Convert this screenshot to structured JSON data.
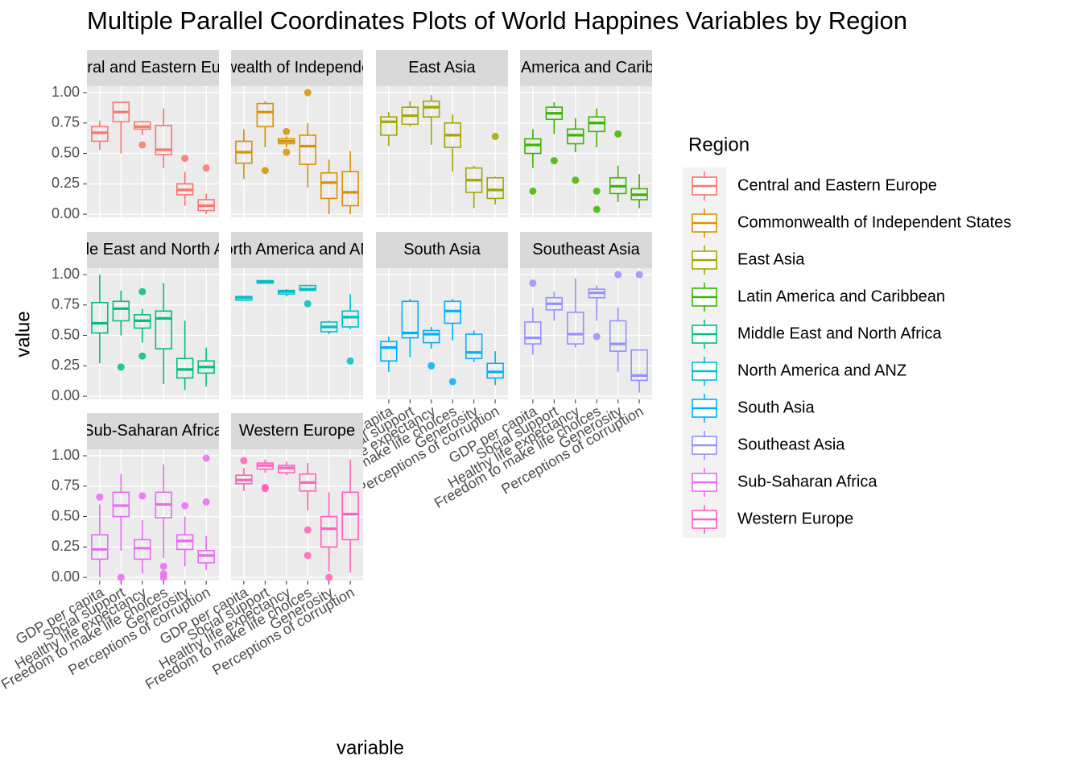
{
  "chart_data": {
    "type": "box",
    "title": "Multiple Parallel Coordinates Plots of World Happines Variables by Region",
    "x_label": "variable",
    "y_label": "value",
    "legend_title": "Region",
    "categories": [
      "GDP per capita",
      "Social support",
      "Healthy life expectancy",
      "Freedom to make life choices",
      "Generosity",
      "Perceptions of corruption"
    ],
    "ylim": [
      -0.026,
      1.053
    ],
    "yticks": [
      {
        "value": 0,
        "label": "0.00"
      },
      {
        "value": 0.25,
        "label": "0.25"
      },
      {
        "value": 0.5,
        "label": "0.50"
      },
      {
        "value": 0.75,
        "label": "0.75"
      },
      {
        "value": 1,
        "label": "1.00"
      }
    ],
    "grid": true,
    "panels": [
      {
        "name": "Central and Eastern Europe",
        "color": "#F8766D",
        "boxes": [
          {
            "low": 0.53,
            "q1": 0.6,
            "median": 0.67,
            "q3": 0.72,
            "high": 0.77,
            "outliers": []
          },
          {
            "low": 0.5,
            "q1": 0.76,
            "median": 0.84,
            "q3": 0.92,
            "high": 0.92,
            "outliers": []
          },
          {
            "low": 0.65,
            "q1": 0.7,
            "median": 0.72,
            "q3": 0.76,
            "high": 0.77,
            "outliers": [
              0.57
            ]
          },
          {
            "low": 0.38,
            "q1": 0.49,
            "median": 0.53,
            "q3": 0.73,
            "high": 0.87,
            "outliers": []
          },
          {
            "low": 0.07,
            "q1": 0.16,
            "median": 0.2,
            "q3": 0.25,
            "high": 0.35,
            "outliers": [
              0.46
            ]
          },
          {
            "low": 0,
            "q1": 0.03,
            "median": 0.07,
            "q3": 0.12,
            "high": 0.17,
            "outliers": [
              0.38
            ]
          }
        ]
      },
      {
        "name": "Commonwealth of Independent States",
        "color": "#D89000",
        "boxes": [
          {
            "low": 0.29,
            "q1": 0.42,
            "median": 0.51,
            "q3": 0.6,
            "high": 0.7,
            "outliers": []
          },
          {
            "low": 0.55,
            "q1": 0.72,
            "median": 0.84,
            "q3": 0.91,
            "high": 0.93,
            "outliers": [
              0.36
            ]
          },
          {
            "low": 0.55,
            "q1": 0.58,
            "median": 0.6,
            "q3": 0.62,
            "high": 0.64,
            "outliers": [
              0.68,
              0.51
            ]
          },
          {
            "low": 0.22,
            "q1": 0.41,
            "median": 0.56,
            "q3": 0.65,
            "high": 0.75,
            "outliers": [
              1
            ]
          },
          {
            "low": 0,
            "q1": 0.13,
            "median": 0.26,
            "q3": 0.34,
            "high": 0.45,
            "outliers": []
          },
          {
            "low": 0,
            "q1": 0.07,
            "median": 0.18,
            "q3": 0.35,
            "high": 0.52,
            "outliers": []
          }
        ]
      },
      {
        "name": "East Asia",
        "color": "#A3A500",
        "boxes": [
          {
            "low": 0.56,
            "q1": 0.65,
            "median": 0.76,
            "q3": 0.8,
            "high": 0.84,
            "outliers": []
          },
          {
            "low": 0.72,
            "q1": 0.74,
            "median": 0.81,
            "q3": 0.88,
            "high": 0.93,
            "outliers": []
          },
          {
            "low": 0.57,
            "q1": 0.8,
            "median": 0.88,
            "q3": 0.93,
            "high": 0.98,
            "outliers": []
          },
          {
            "low": 0.35,
            "q1": 0.55,
            "median": 0.65,
            "q3": 0.75,
            "high": 0.82,
            "outliers": []
          },
          {
            "low": 0.05,
            "q1": 0.18,
            "median": 0.28,
            "q3": 0.38,
            "high": 0.4,
            "outliers": []
          },
          {
            "low": 0.08,
            "q1": 0.13,
            "median": 0.2,
            "q3": 0.3,
            "high": 0.31,
            "outliers": [
              0.64
            ]
          }
        ]
      },
      {
        "name": "Latin America and Caribbean",
        "color": "#39B600",
        "boxes": [
          {
            "low": 0.38,
            "q1": 0.5,
            "median": 0.57,
            "q3": 0.62,
            "high": 0.7,
            "outliers": [
              0.19
            ]
          },
          {
            "low": 0.66,
            "q1": 0.78,
            "median": 0.83,
            "q3": 0.88,
            "high": 0.92,
            "outliers": [
              0.44
            ]
          },
          {
            "low": 0.51,
            "q1": 0.58,
            "median": 0.65,
            "q3": 0.7,
            "high": 0.79,
            "outliers": [
              0.28
            ]
          },
          {
            "low": 0.55,
            "q1": 0.68,
            "median": 0.75,
            "q3": 0.8,
            "high": 0.87,
            "outliers": [
              0.19,
              0.04
            ]
          },
          {
            "low": 0.1,
            "q1": 0.17,
            "median": 0.23,
            "q3": 0.3,
            "high": 0.4,
            "outliers": [
              0.66
            ]
          },
          {
            "low": 0.05,
            "q1": 0.12,
            "median": 0.16,
            "q3": 0.21,
            "high": 0.33,
            "outliers": []
          }
        ]
      },
      {
        "name": "Middle East and North Africa",
        "color": "#00BF7D",
        "boxes": [
          {
            "low": 0.27,
            "q1": 0.52,
            "median": 0.6,
            "q3": 0.77,
            "high": 1,
            "outliers": []
          },
          {
            "low": 0.5,
            "q1": 0.62,
            "median": 0.72,
            "q3": 0.78,
            "high": 0.87,
            "outliers": [
              0.24
            ]
          },
          {
            "low": 0.44,
            "q1": 0.56,
            "median": 0.62,
            "q3": 0.67,
            "high": 0.72,
            "outliers": [
              0.86,
              0.33
            ]
          },
          {
            "low": 0.1,
            "q1": 0.39,
            "median": 0.64,
            "q3": 0.7,
            "high": 0.93,
            "outliers": []
          },
          {
            "low": 0.05,
            "q1": 0.15,
            "median": 0.22,
            "q3": 0.31,
            "high": 0.62,
            "outliers": []
          },
          {
            "low": 0.08,
            "q1": 0.19,
            "median": 0.24,
            "q3": 0.29,
            "high": 0.4,
            "outliers": []
          }
        ]
      },
      {
        "name": "North America and ANZ",
        "color": "#00BFC4",
        "boxes": [
          {
            "low": 0.79,
            "q1": 0.79,
            "median": 0.81,
            "q3": 0.82,
            "high": 0.82,
            "outliers": []
          },
          {
            "low": 0.93,
            "q1": 0.93,
            "median": 0.94,
            "q3": 0.95,
            "high": 0.95,
            "outliers": []
          },
          {
            "low": 0.82,
            "q1": 0.84,
            "median": 0.86,
            "q3": 0.87,
            "high": 0.88,
            "outliers": []
          },
          {
            "low": 0.87,
            "q1": 0.87,
            "median": 0.88,
            "q3": 0.91,
            "high": 0.91,
            "outliers": [
              0.76
            ]
          },
          {
            "low": 0.51,
            "q1": 0.53,
            "median": 0.57,
            "q3": 0.61,
            "high": 0.62,
            "outliers": []
          },
          {
            "low": 0.55,
            "q1": 0.57,
            "median": 0.65,
            "q3": 0.7,
            "high": 0.84,
            "outliers": [
              0.29
            ]
          }
        ]
      },
      {
        "name": "South Asia",
        "color": "#00B0F6",
        "boxes": [
          {
            "low": 0.2,
            "q1": 0.29,
            "median": 0.4,
            "q3": 0.45,
            "high": 0.49,
            "outliers": []
          },
          {
            "low": 0.32,
            "q1": 0.48,
            "median": 0.52,
            "q3": 0.78,
            "high": 0.8,
            "outliers": []
          },
          {
            "low": 0.39,
            "q1": 0.44,
            "median": 0.51,
            "q3": 0.54,
            "high": 0.57,
            "outliers": [
              0.25
            ]
          },
          {
            "low": 0.46,
            "q1": 0.6,
            "median": 0.7,
            "q3": 0.78,
            "high": 0.8,
            "outliers": [
              0.12
            ]
          },
          {
            "low": 0.28,
            "q1": 0.31,
            "median": 0.36,
            "q3": 0.51,
            "high": 0.54,
            "outliers": []
          },
          {
            "low": 0.09,
            "q1": 0.15,
            "median": 0.2,
            "q3": 0.27,
            "high": 0.37,
            "outliers": []
          }
        ]
      },
      {
        "name": "Southeast Asia",
        "color": "#9590FF",
        "boxes": [
          {
            "low": 0.34,
            "q1": 0.43,
            "median": 0.48,
            "q3": 0.61,
            "high": 0.73,
            "outliers": [
              0.93
            ]
          },
          {
            "low": 0.62,
            "q1": 0.71,
            "median": 0.76,
            "q3": 0.81,
            "high": 0.86,
            "outliers": []
          },
          {
            "low": 0.4,
            "q1": 0.43,
            "median": 0.51,
            "q3": 0.69,
            "high": 0.97,
            "outliers": []
          },
          {
            "low": 0.62,
            "q1": 0.81,
            "median": 0.85,
            "q3": 0.88,
            "high": 0.91,
            "outliers": [
              0.49
            ]
          },
          {
            "low": 0.2,
            "q1": 0.37,
            "median": 0.43,
            "q3": 0.62,
            "high": 0.73,
            "outliers": [
              1
            ]
          },
          {
            "low": 0.03,
            "q1": 0.13,
            "median": 0.17,
            "q3": 0.38,
            "high": 0.38,
            "outliers": [
              1
            ]
          }
        ]
      },
      {
        "name": "Sub-Saharan Africa",
        "color": "#E76BF3",
        "boxes": [
          {
            "low": 0,
            "q1": 0.15,
            "median": 0.23,
            "q3": 0.35,
            "high": 0.6,
            "outliers": [
              0.66
            ]
          },
          {
            "low": 0.22,
            "q1": 0.5,
            "median": 0.59,
            "q3": 0.7,
            "high": 0.85,
            "outliers": [
              0
            ]
          },
          {
            "low": 0.03,
            "q1": 0.15,
            "median": 0.24,
            "q3": 0.31,
            "high": 0.47,
            "outliers": [
              0.67
            ]
          },
          {
            "low": 0.16,
            "q1": 0.49,
            "median": 0.6,
            "q3": 0.7,
            "high": 0.93,
            "outliers": [
              0.09,
              0.03,
              0
            ]
          },
          {
            "low": 0.09,
            "q1": 0.23,
            "median": 0.3,
            "q3": 0.35,
            "high": 0.5,
            "outliers": [
              0.59
            ]
          },
          {
            "low": 0.06,
            "q1": 0.12,
            "median": 0.18,
            "q3": 0.22,
            "high": 0.34,
            "outliers": [
              0.98,
              0.62
            ]
          }
        ]
      },
      {
        "name": "Western Europe",
        "color": "#FF62BC",
        "boxes": [
          {
            "low": 0.71,
            "q1": 0.77,
            "median": 0.8,
            "q3": 0.84,
            "high": 0.9,
            "outliers": [
              0.96
            ]
          },
          {
            "low": 0.86,
            "q1": 0.89,
            "median": 0.92,
            "q3": 0.94,
            "high": 0.97,
            "outliers": [
              0.73,
              0.74
            ]
          },
          {
            "low": 0.84,
            "q1": 0.86,
            "median": 0.9,
            "q3": 0.92,
            "high": 0.95,
            "outliers": []
          },
          {
            "low": 0.55,
            "q1": 0.71,
            "median": 0.78,
            "q3": 0.85,
            "high": 0.94,
            "outliers": [
              0.39,
              0.18
            ]
          },
          {
            "low": 0.05,
            "q1": 0.25,
            "median": 0.4,
            "q3": 0.5,
            "high": 0.7,
            "outliers": [
              0
            ]
          },
          {
            "low": 0.04,
            "q1": 0.31,
            "median": 0.52,
            "q3": 0.7,
            "high": 0.97,
            "outliers": []
          }
        ]
      }
    ]
  }
}
